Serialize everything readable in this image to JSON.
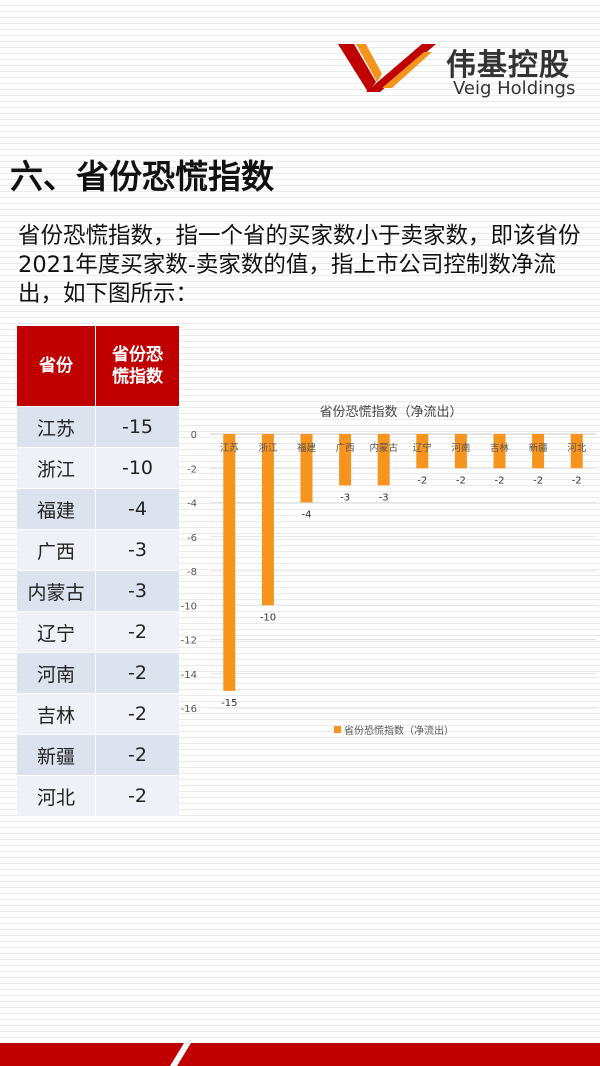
{
  "brand": {
    "name_cn": "伟基控股",
    "name_en": "Veig Holdings",
    "color_red": "#c00000",
    "color_orange": "#f7941d"
  },
  "page": {
    "title": "六、省份恐慌指数",
    "intro": "省份恐慌指数，指一个省的买家数小于卖家数，即该省份2021年度买家数-卖家数的值，指上市公司控制数净流出，如下图所示："
  },
  "table": {
    "headers": [
      "省份",
      "省份恐慌指数"
    ],
    "rows": [
      [
        "江苏",
        "-15"
      ],
      [
        "浙江",
        "-10"
      ],
      [
        "福建",
        "-4"
      ],
      [
        "广西",
        "-3"
      ],
      [
        "内蒙古",
        "-3"
      ],
      [
        "辽宁",
        "-2"
      ],
      [
        "河南",
        "-2"
      ],
      [
        "吉林",
        "-2"
      ],
      [
        "新疆",
        "-2"
      ],
      [
        "河北",
        "-2"
      ]
    ]
  },
  "chart_data": {
    "type": "bar",
    "title": "省份恐慌指数（净流出）",
    "categories": [
      "江苏",
      "浙江",
      "福建",
      "广西",
      "内蒙古",
      "辽宁",
      "河南",
      "吉林",
      "新疆",
      "河北"
    ],
    "series": [
      {
        "name": "省份恐慌指数（净流出）",
        "values": [
          -15,
          -10,
          -4,
          -3,
          -3,
          -2,
          -2,
          -2,
          -2,
          -2
        ]
      }
    ],
    "yticks": [
      0,
      -2,
      -4,
      -6,
      -8,
      -10,
      -12,
      -14,
      -16
    ],
    "ylim": [
      -16,
      0
    ],
    "grid": true,
    "legend": "bottom",
    "bar_color": "#f7941d"
  }
}
